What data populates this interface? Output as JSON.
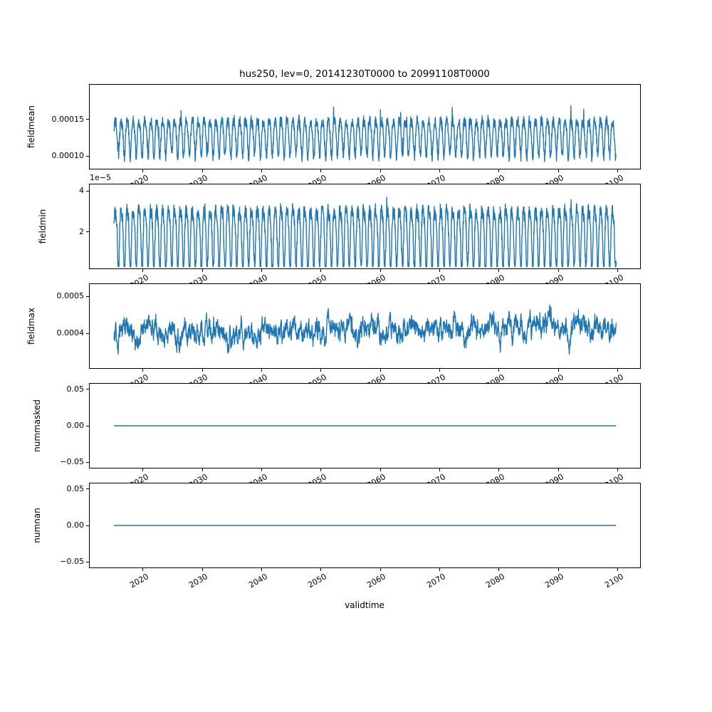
{
  "figure": {
    "title": "hus250, lev=0, 20141230T0000 to 20991108T0000",
    "xlabel": "validtime",
    "line_color": "#1f77b4",
    "frame_color": "#000000",
    "background": "#ffffff",
    "grid": false,
    "legend": false,
    "x": {
      "start": 2015.0,
      "end": 2099.85,
      "lim": [
        2010.9,
        2103.9
      ],
      "ticks": [
        {
          "v": 2020,
          "label": "2020"
        },
        {
          "v": 2030,
          "label": "2030"
        },
        {
          "v": 2040,
          "label": "2040"
        },
        {
          "v": 2050,
          "label": "2050"
        },
        {
          "v": 2060,
          "label": "2060"
        },
        {
          "v": 2070,
          "label": "2070"
        },
        {
          "v": 2080,
          "label": "2080"
        },
        {
          "v": 2090,
          "label": "2090"
        },
        {
          "v": 2100,
          "label": "2100"
        }
      ]
    }
  },
  "chart_data": [
    {
      "type": "line",
      "ylabel": "fieldmean",
      "ylim": [
        8.2e-05,
        0.000198
      ],
      "yticks": [
        {
          "v": 0.0001,
          "label": "0.00010"
        },
        {
          "v": 0.00015,
          "label": "0.00015"
        }
      ],
      "series": {
        "name": "fieldmean",
        "kind": "seasonal",
        "mean": 0.000128,
        "amplitude": 2.4e-05,
        "amplitude2": 5e-06,
        "period_years": 1,
        "noise": 7.5e-06,
        "spike": 2e-05,
        "spike_prob": 0.02,
        "trend": 0,
        "seed": 7,
        "clamp": [
          9e-05,
          0.000196
        ],
        "approx_range": [
          9.5e-05,
          0.000195
        ]
      }
    },
    {
      "type": "line",
      "ylabel": "fieldmin",
      "offset_text": "1e−5",
      "ylim": [
        2e-06,
        4.35e-05
      ],
      "yticks": [
        {
          "v": 2e-05,
          "label": "2"
        },
        {
          "v": 4e-05,
          "label": "4"
        }
      ],
      "series": {
        "name": "fieldmin",
        "kind": "seasonal",
        "mean": 1.9e-05,
        "amplitude": 1.45e-05,
        "amplitude2": 4e-06,
        "period_years": 1,
        "noise": 3.5e-06,
        "spike": 5e-06,
        "spike_prob": 0.02,
        "trend": 0,
        "seed": 23,
        "clamp": [
          2.8e-06,
          4.25e-05
        ],
        "approx_range": [
          4e-06,
          4.2e-05
        ]
      }
    },
    {
      "type": "line",
      "ylabel": "fieldmax",
      "ylim": [
        0.000305,
        0.000535
      ],
      "yticks": [
        {
          "v": 0.0004,
          "label": "0.0004"
        },
        {
          "v": 0.0005,
          "label": "0.0005"
        }
      ],
      "series": {
        "name": "fieldmax",
        "kind": "noisy",
        "mean": 0.000402,
        "step": 1.8e-05,
        "noise": 1e-05,
        "trend": 1.5e-07,
        "seed": 41,
        "clamp": [
          0.00032,
          0.000525
        ],
        "approx_range": [
          0.00033,
          0.00052
        ]
      }
    },
    {
      "type": "line",
      "ylabel": "nummasked",
      "ylim": [
        -0.0585,
        0.0585
      ],
      "yticks": [
        {
          "v": 0.05,
          "label": "0.05"
        },
        {
          "v": 0.0,
          "label": "0.00"
        },
        {
          "v": -0.05,
          "label": "−0.05"
        }
      ],
      "series": {
        "name": "nummasked",
        "kind": "constant",
        "value": 0,
        "approx_range": [
          0,
          0
        ]
      }
    },
    {
      "type": "line",
      "ylabel": "numnan",
      "ylim": [
        -0.0585,
        0.0585
      ],
      "yticks": [
        {
          "v": 0.05,
          "label": "0.05"
        },
        {
          "v": 0.0,
          "label": "0.00"
        },
        {
          "v": -0.05,
          "label": "−0.05"
        }
      ],
      "series": {
        "name": "numnan",
        "kind": "constant",
        "value": 0,
        "approx_range": [
          0,
          0
        ]
      }
    }
  ]
}
